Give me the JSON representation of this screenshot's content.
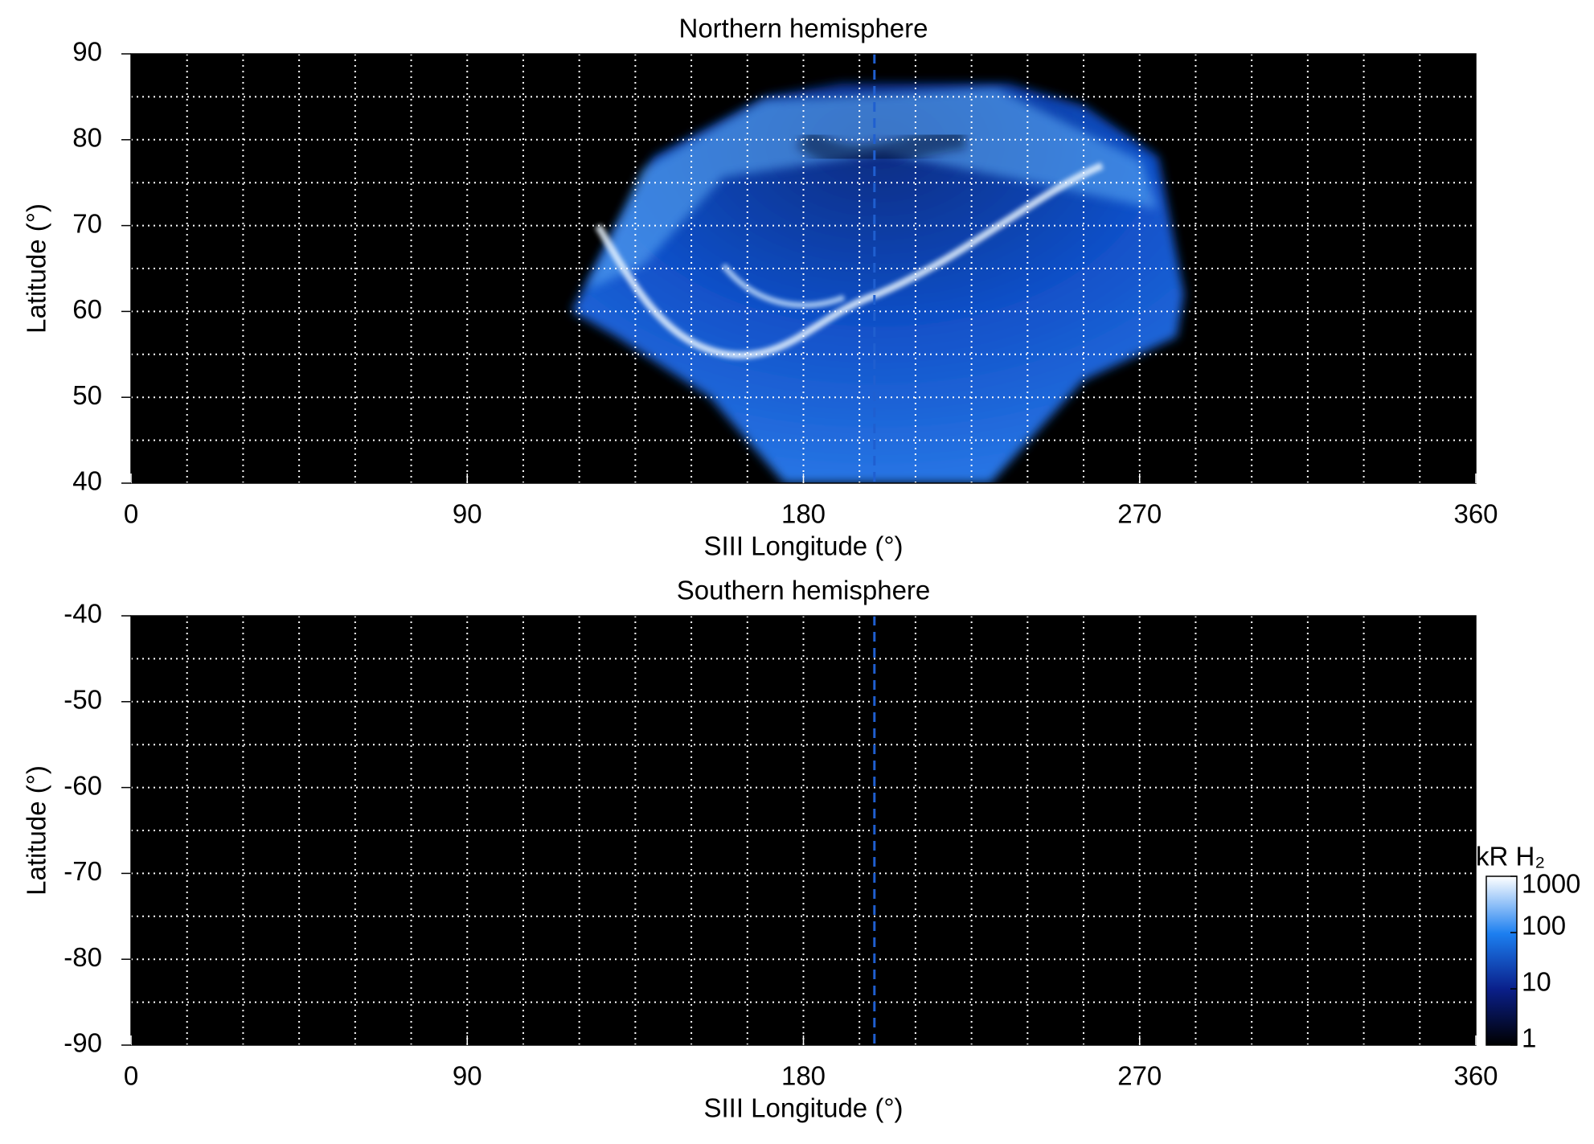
{
  "chart_data": [
    {
      "type": "map",
      "title": "Northern hemisphere",
      "x_label": "SIII Longitude (°)",
      "y_label": "Latitude (°)",
      "xlim": [
        0,
        360
      ],
      "xticks": [
        0,
        90,
        180,
        270,
        360
      ],
      "ylim": [
        40,
        90
      ],
      "yticks": [
        40,
        50,
        60,
        70,
        80,
        90
      ],
      "xgrid": [
        15,
        30,
        45,
        60,
        75,
        90,
        105,
        120,
        135,
        150,
        165,
        180,
        195,
        210,
        225,
        240,
        255,
        270,
        285,
        300,
        315,
        330,
        345
      ],
      "ygrid": [
        45,
        50,
        55,
        60,
        65,
        70,
        75,
        80,
        85
      ],
      "marker_x": 199,
      "marker_color": "#1f5fd0",
      "background": "#000000"
    },
    {
      "type": "map",
      "title": "Southern hemisphere",
      "x_label": "SIII Longitude (°)",
      "y_label": "Latitude (°)",
      "xlim": [
        0,
        360
      ],
      "xticks": [
        0,
        90,
        180,
        270,
        360
      ],
      "ylim": [
        -90,
        -40
      ],
      "yticks": [
        -90,
        -80,
        -70,
        -60,
        -50,
        -40
      ],
      "xgrid": [
        15,
        30,
        45,
        60,
        75,
        90,
        105,
        120,
        135,
        150,
        165,
        180,
        195,
        210,
        225,
        240,
        255,
        270,
        285,
        300,
        315,
        330,
        345
      ],
      "ygrid": [
        -85,
        -80,
        -75,
        -70,
        -65,
        -60,
        -55,
        -50,
        -45
      ],
      "marker_x": 199,
      "marker_color": "#1f5fd0",
      "background": "#000000",
      "colorbar": {
        "label": "kR H₂",
        "lim": [
          1,
          1000
        ],
        "ticks": [
          1,
          10,
          100,
          1000
        ],
        "log": true
      }
    }
  ]
}
